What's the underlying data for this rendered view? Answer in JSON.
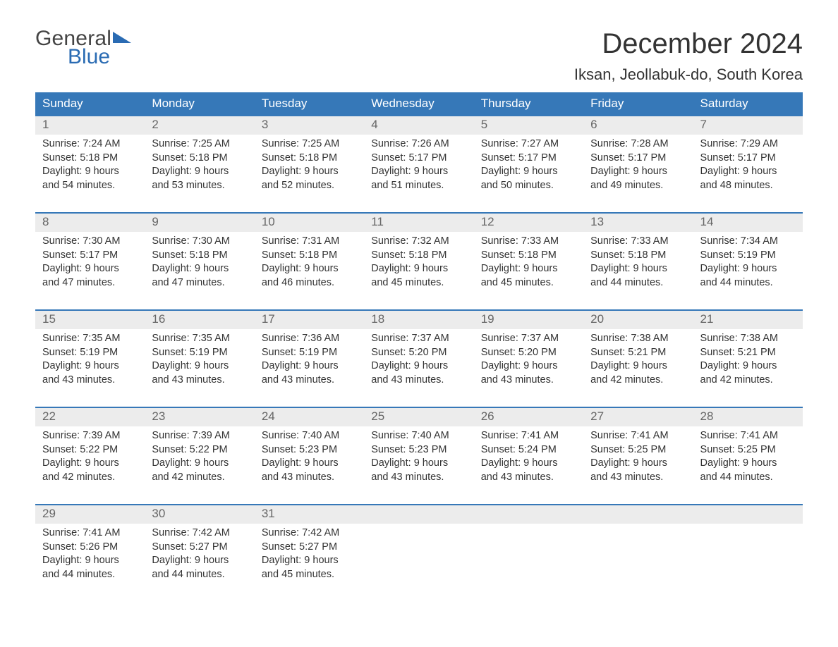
{
  "logo": {
    "general": "General",
    "blue": "Blue"
  },
  "header": {
    "month_title": "December 2024",
    "location": "Iksan, Jeollabuk-do, South Korea"
  },
  "colors": {
    "brand_blue": "#2a6bb3",
    "header_blue": "#3678b8",
    "daynum_bg": "#ececec",
    "text": "#333333",
    "muted": "#666666",
    "bg": "#ffffff"
  },
  "layout": {
    "columns": 7,
    "rows": 5,
    "dow_fontsize": 17,
    "cell_fontsize": 14.5,
    "title_fontsize": 40,
    "location_fontsize": 22
  },
  "dow": [
    "Sunday",
    "Monday",
    "Tuesday",
    "Wednesday",
    "Thursday",
    "Friday",
    "Saturday"
  ],
  "weeks": [
    [
      {
        "n": "1",
        "sr": "Sunrise: 7:24 AM",
        "ss": "Sunset: 5:18 PM",
        "d1": "Daylight: 9 hours",
        "d2": "and 54 minutes."
      },
      {
        "n": "2",
        "sr": "Sunrise: 7:25 AM",
        "ss": "Sunset: 5:18 PM",
        "d1": "Daylight: 9 hours",
        "d2": "and 53 minutes."
      },
      {
        "n": "3",
        "sr": "Sunrise: 7:25 AM",
        "ss": "Sunset: 5:18 PM",
        "d1": "Daylight: 9 hours",
        "d2": "and 52 minutes."
      },
      {
        "n": "4",
        "sr": "Sunrise: 7:26 AM",
        "ss": "Sunset: 5:17 PM",
        "d1": "Daylight: 9 hours",
        "d2": "and 51 minutes."
      },
      {
        "n": "5",
        "sr": "Sunrise: 7:27 AM",
        "ss": "Sunset: 5:17 PM",
        "d1": "Daylight: 9 hours",
        "d2": "and 50 minutes."
      },
      {
        "n": "6",
        "sr": "Sunrise: 7:28 AM",
        "ss": "Sunset: 5:17 PM",
        "d1": "Daylight: 9 hours",
        "d2": "and 49 minutes."
      },
      {
        "n": "7",
        "sr": "Sunrise: 7:29 AM",
        "ss": "Sunset: 5:17 PM",
        "d1": "Daylight: 9 hours",
        "d2": "and 48 minutes."
      }
    ],
    [
      {
        "n": "8",
        "sr": "Sunrise: 7:30 AM",
        "ss": "Sunset: 5:17 PM",
        "d1": "Daylight: 9 hours",
        "d2": "and 47 minutes."
      },
      {
        "n": "9",
        "sr": "Sunrise: 7:30 AM",
        "ss": "Sunset: 5:18 PM",
        "d1": "Daylight: 9 hours",
        "d2": "and 47 minutes."
      },
      {
        "n": "10",
        "sr": "Sunrise: 7:31 AM",
        "ss": "Sunset: 5:18 PM",
        "d1": "Daylight: 9 hours",
        "d2": "and 46 minutes."
      },
      {
        "n": "11",
        "sr": "Sunrise: 7:32 AM",
        "ss": "Sunset: 5:18 PM",
        "d1": "Daylight: 9 hours",
        "d2": "and 45 minutes."
      },
      {
        "n": "12",
        "sr": "Sunrise: 7:33 AM",
        "ss": "Sunset: 5:18 PM",
        "d1": "Daylight: 9 hours",
        "d2": "and 45 minutes."
      },
      {
        "n": "13",
        "sr": "Sunrise: 7:33 AM",
        "ss": "Sunset: 5:18 PM",
        "d1": "Daylight: 9 hours",
        "d2": "and 44 minutes."
      },
      {
        "n": "14",
        "sr": "Sunrise: 7:34 AM",
        "ss": "Sunset: 5:19 PM",
        "d1": "Daylight: 9 hours",
        "d2": "and 44 minutes."
      }
    ],
    [
      {
        "n": "15",
        "sr": "Sunrise: 7:35 AM",
        "ss": "Sunset: 5:19 PM",
        "d1": "Daylight: 9 hours",
        "d2": "and 43 minutes."
      },
      {
        "n": "16",
        "sr": "Sunrise: 7:35 AM",
        "ss": "Sunset: 5:19 PM",
        "d1": "Daylight: 9 hours",
        "d2": "and 43 minutes."
      },
      {
        "n": "17",
        "sr": "Sunrise: 7:36 AM",
        "ss": "Sunset: 5:19 PM",
        "d1": "Daylight: 9 hours",
        "d2": "and 43 minutes."
      },
      {
        "n": "18",
        "sr": "Sunrise: 7:37 AM",
        "ss": "Sunset: 5:20 PM",
        "d1": "Daylight: 9 hours",
        "d2": "and 43 minutes."
      },
      {
        "n": "19",
        "sr": "Sunrise: 7:37 AM",
        "ss": "Sunset: 5:20 PM",
        "d1": "Daylight: 9 hours",
        "d2": "and 43 minutes."
      },
      {
        "n": "20",
        "sr": "Sunrise: 7:38 AM",
        "ss": "Sunset: 5:21 PM",
        "d1": "Daylight: 9 hours",
        "d2": "and 42 minutes."
      },
      {
        "n": "21",
        "sr": "Sunrise: 7:38 AM",
        "ss": "Sunset: 5:21 PM",
        "d1": "Daylight: 9 hours",
        "d2": "and 42 minutes."
      }
    ],
    [
      {
        "n": "22",
        "sr": "Sunrise: 7:39 AM",
        "ss": "Sunset: 5:22 PM",
        "d1": "Daylight: 9 hours",
        "d2": "and 42 minutes."
      },
      {
        "n": "23",
        "sr": "Sunrise: 7:39 AM",
        "ss": "Sunset: 5:22 PM",
        "d1": "Daylight: 9 hours",
        "d2": "and 42 minutes."
      },
      {
        "n": "24",
        "sr": "Sunrise: 7:40 AM",
        "ss": "Sunset: 5:23 PM",
        "d1": "Daylight: 9 hours",
        "d2": "and 43 minutes."
      },
      {
        "n": "25",
        "sr": "Sunrise: 7:40 AM",
        "ss": "Sunset: 5:23 PM",
        "d1": "Daylight: 9 hours",
        "d2": "and 43 minutes."
      },
      {
        "n": "26",
        "sr": "Sunrise: 7:41 AM",
        "ss": "Sunset: 5:24 PM",
        "d1": "Daylight: 9 hours",
        "d2": "and 43 minutes."
      },
      {
        "n": "27",
        "sr": "Sunrise: 7:41 AM",
        "ss": "Sunset: 5:25 PM",
        "d1": "Daylight: 9 hours",
        "d2": "and 43 minutes."
      },
      {
        "n": "28",
        "sr": "Sunrise: 7:41 AM",
        "ss": "Sunset: 5:25 PM",
        "d1": "Daylight: 9 hours",
        "d2": "and 44 minutes."
      }
    ],
    [
      {
        "n": "29",
        "sr": "Sunrise: 7:41 AM",
        "ss": "Sunset: 5:26 PM",
        "d1": "Daylight: 9 hours",
        "d2": "and 44 minutes."
      },
      {
        "n": "30",
        "sr": "Sunrise: 7:42 AM",
        "ss": "Sunset: 5:27 PM",
        "d1": "Daylight: 9 hours",
        "d2": "and 44 minutes."
      },
      {
        "n": "31",
        "sr": "Sunrise: 7:42 AM",
        "ss": "Sunset: 5:27 PM",
        "d1": "Daylight: 9 hours",
        "d2": "and 45 minutes."
      },
      {
        "n": "",
        "sr": "",
        "ss": "",
        "d1": "",
        "d2": ""
      },
      {
        "n": "",
        "sr": "",
        "ss": "",
        "d1": "",
        "d2": ""
      },
      {
        "n": "",
        "sr": "",
        "ss": "",
        "d1": "",
        "d2": ""
      },
      {
        "n": "",
        "sr": "",
        "ss": "",
        "d1": "",
        "d2": ""
      }
    ]
  ]
}
